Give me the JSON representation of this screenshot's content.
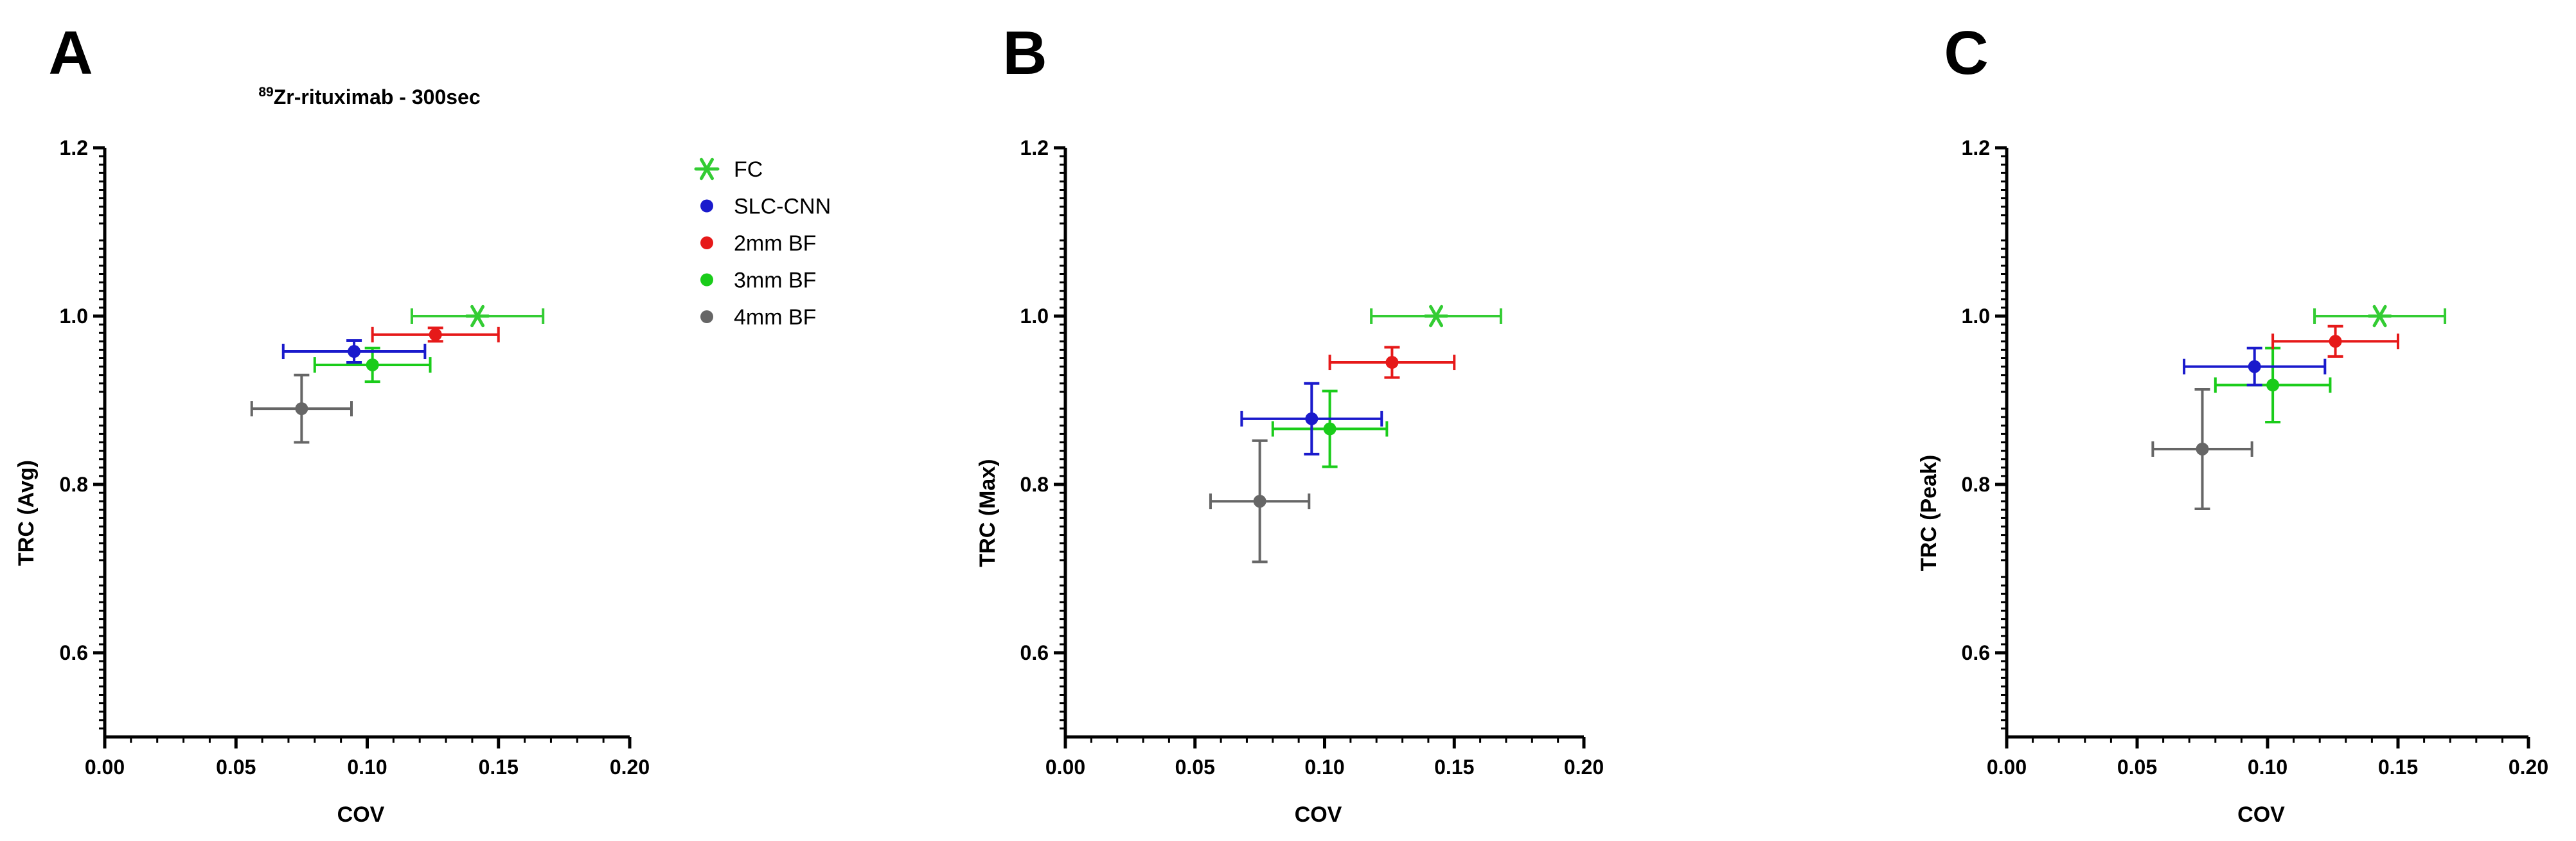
{
  "figure_title_prefix": "89",
  "figure_title_main": "Zr-rituximab - 300sec",
  "legend": [
    {
      "label": "FC",
      "color": "#33cc33",
      "marker": "star"
    },
    {
      "label": "SLC-CNN",
      "color": "#1a1acc",
      "marker": "dot"
    },
    {
      "label": "2mm BF",
      "color": "#e61919",
      "marker": "dot"
    },
    {
      "label": "3mm BF",
      "color": "#1acc1a",
      "marker": "dot"
    },
    {
      "label": "4mm BF",
      "color": "#666666",
      "marker": "dot"
    }
  ],
  "chart_data": [
    {
      "type": "scatter",
      "panel_label": "A",
      "xlabel": "COV",
      "ylabel": "TRC (Avg)",
      "xlim": [
        0.0,
        0.2
      ],
      "ylim": [
        0.5,
        1.2
      ],
      "xticks": [
        "0.00",
        "0.05",
        "0.10",
        "0.15",
        "0.20"
      ],
      "yticks": [
        "0.6",
        "0.8",
        "1.0",
        "1.2"
      ],
      "series": [
        {
          "name": "FC",
          "x": 0.142,
          "y": 1.0,
          "xerr": 0.025,
          "yerr": 0.0
        },
        {
          "name": "SLC-CNN",
          "x": 0.095,
          "y": 0.958,
          "xerr": 0.027,
          "yerr": 0.013
        },
        {
          "name": "2mm BF",
          "x": 0.126,
          "y": 0.978,
          "xerr": 0.024,
          "yerr": 0.008
        },
        {
          "name": "3mm BF",
          "x": 0.102,
          "y": 0.942,
          "xerr": 0.022,
          "yerr": 0.02
        },
        {
          "name": "4mm BF",
          "x": 0.075,
          "y": 0.89,
          "xerr": 0.019,
          "yerr": 0.04
        }
      ]
    },
    {
      "type": "scatter",
      "panel_label": "B",
      "xlabel": "COV",
      "ylabel": "TRC (Max)",
      "xlim": [
        0.0,
        0.2
      ],
      "ylim": [
        0.5,
        1.2
      ],
      "xticks": [
        "0.00",
        "0.05",
        "0.10",
        "0.15",
        "0.20"
      ],
      "yticks": [
        "0.6",
        "0.8",
        "1.0",
        "1.2"
      ],
      "series": [
        {
          "name": "FC",
          "x": 0.143,
          "y": 1.0,
          "xerr": 0.025,
          "yerr": 0.0
        },
        {
          "name": "SLC-CNN",
          "x": 0.095,
          "y": 0.878,
          "xerr": 0.027,
          "yerr": 0.042
        },
        {
          "name": "2mm BF",
          "x": 0.126,
          "y": 0.945,
          "xerr": 0.024,
          "yerr": 0.018
        },
        {
          "name": "3mm BF",
          "x": 0.102,
          "y": 0.866,
          "xerr": 0.022,
          "yerr": 0.045
        },
        {
          "name": "4mm BF",
          "x": 0.075,
          "y": 0.78,
          "xerr": 0.019,
          "yerr": 0.072
        }
      ]
    },
    {
      "type": "scatter",
      "panel_label": "C",
      "xlabel": "COV",
      "ylabel": "TRC (Peak)",
      "xlim": [
        0.0,
        0.2
      ],
      "ylim": [
        0.5,
        1.2
      ],
      "xticks": [
        "0.00",
        "0.05",
        "0.10",
        "0.15",
        "0.20"
      ],
      "yticks": [
        "0.6",
        "0.8",
        "1.0",
        "1.2"
      ],
      "series": [
        {
          "name": "FC",
          "x": 0.143,
          "y": 1.0,
          "xerr": 0.025,
          "yerr": 0.0
        },
        {
          "name": "SLC-CNN",
          "x": 0.095,
          "y": 0.94,
          "xerr": 0.027,
          "yerr": 0.022
        },
        {
          "name": "2mm BF",
          "x": 0.126,
          "y": 0.97,
          "xerr": 0.024,
          "yerr": 0.018
        },
        {
          "name": "3mm BF",
          "x": 0.102,
          "y": 0.918,
          "xerr": 0.022,
          "yerr": 0.044
        },
        {
          "name": "4mm BF",
          "x": 0.075,
          "y": 0.842,
          "xerr": 0.019,
          "yerr": 0.071
        }
      ]
    }
  ]
}
